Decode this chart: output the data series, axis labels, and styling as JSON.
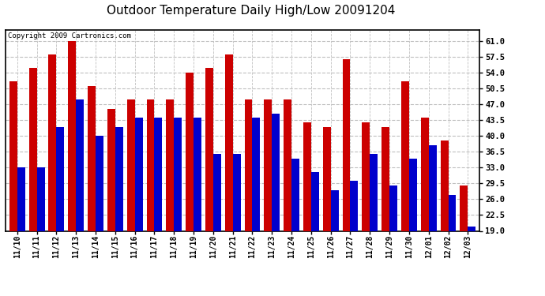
{
  "title": "Outdoor Temperature Daily High/Low 20091204",
  "copyright": "Copyright 2009 Cartronics.com",
  "dates": [
    "11/10",
    "11/11",
    "11/12",
    "11/13",
    "11/14",
    "11/15",
    "11/16",
    "11/17",
    "11/18",
    "11/19",
    "11/20",
    "11/21",
    "11/22",
    "11/23",
    "11/24",
    "11/25",
    "11/26",
    "11/27",
    "11/28",
    "11/29",
    "11/30",
    "12/01",
    "12/02",
    "12/03"
  ],
  "highs": [
    52,
    55,
    58,
    61,
    51,
    46,
    48,
    48,
    48,
    54,
    55,
    58,
    48,
    48,
    48,
    43,
    42,
    57,
    43,
    42,
    52,
    44,
    39,
    29
  ],
  "lows": [
    33,
    33,
    42,
    48,
    40,
    42,
    44,
    44,
    44,
    44,
    36,
    36,
    44,
    45,
    35,
    32,
    28,
    30,
    36,
    29,
    35,
    38,
    27,
    20
  ],
  "high_color": "#cc0000",
  "low_color": "#0000cc",
  "bg_color": "#ffffff",
  "grid_color": "#c0c0c0",
  "ylim_min": 19.0,
  "ylim_max": 63.5,
  "yticks": [
    19.0,
    22.5,
    26.0,
    29.5,
    33.0,
    36.5,
    40.0,
    43.5,
    47.0,
    50.5,
    54.0,
    57.5,
    61.0
  ],
  "title_fontsize": 11,
  "copyright_fontsize": 6.5,
  "figwidth": 6.9,
  "figheight": 3.75,
  "dpi": 100
}
